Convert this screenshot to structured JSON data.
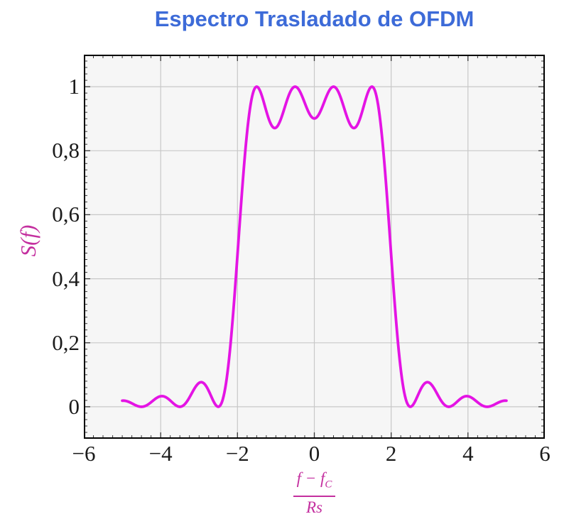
{
  "title": "Espectro Trasladado de OFDM",
  "axes": {
    "ylabel": "S(f)",
    "xlabel_numerator": "f − f",
    "xlabel_numerator_sub": "C",
    "xlabel_denominator": "Rs"
  },
  "colors": {
    "title": "#3D6BD8",
    "curve": "#E414E4",
    "axis_label": "#C42F9F",
    "grid": "#C8C8C8",
    "plot_bg": "#F6F6F6",
    "frame": "#000000",
    "tick": "#3A3A3A",
    "tick_label": "#1B1B1B"
  },
  "chart_data": {
    "type": "line",
    "title": "Espectro Trasladado de OFDM",
    "xlabel": "(f − f_C) / Rs",
    "ylabel": "S(f)",
    "xlim": [
      -6,
      6
    ],
    "ylim": [
      -0.1,
      1.1
    ],
    "grid": true,
    "legend": "none",
    "x_major_ticks": [
      -6,
      -4,
      -2,
      0,
      2,
      4,
      6
    ],
    "x_tick_labels": [
      "−6",
      "−4",
      "−2",
      "0",
      "2",
      "4",
      "6"
    ],
    "x_gridlines": [
      -4,
      -2,
      0,
      2,
      4
    ],
    "x_minor_step": 0.25,
    "y_major_ticks": [
      0,
      0.2,
      0.4,
      0.6,
      0.8,
      1
    ],
    "y_tick_labels": [
      "0",
      "0,2",
      "0,4",
      "0,6",
      "0,8",
      "1"
    ],
    "y_minor_step": 0.02,
    "series": [
      {
        "name": "S(f)",
        "formula": "S(f) = sum over k of sinc^2(f − k), k in {−1.5, −0.5, 0.5, 1.5}",
        "model": "sum_sinc_squared",
        "subcarriers": [
          -1.5,
          -0.5,
          0.5,
          1.5
        ],
        "x_range": [
          -5,
          5
        ],
        "sample_step": 0.02,
        "key_points": [
          [
            -5,
            0.019
          ],
          [
            -4.5,
            0
          ],
          [
            -4,
            0.033
          ],
          [
            -3.5,
            0
          ],
          [
            -3,
            0.075
          ],
          [
            -2.5,
            0
          ],
          [
            -2,
            0.475
          ],
          [
            -1.5,
            1.0
          ],
          [
            -1,
            0.872
          ],
          [
            -0.5,
            1.0
          ],
          [
            0,
            0.901
          ],
          [
            0.5,
            1.0
          ],
          [
            1,
            0.872
          ],
          [
            1.5,
            1.0
          ],
          [
            2,
            0.475
          ],
          [
            2.5,
            0
          ],
          [
            3,
            0.075
          ],
          [
            3.5,
            0
          ],
          [
            4,
            0.033
          ],
          [
            4.5,
            0
          ],
          [
            5,
            0.019
          ]
        ]
      }
    ]
  }
}
